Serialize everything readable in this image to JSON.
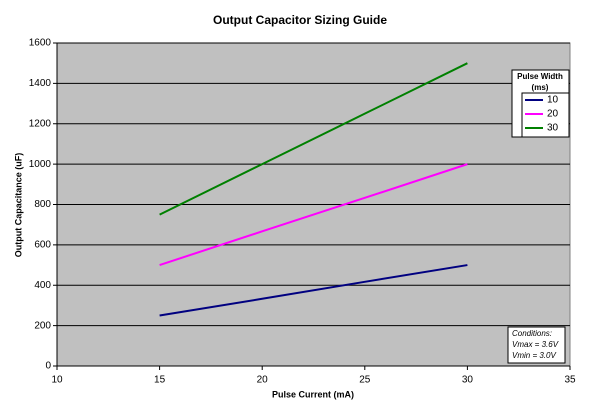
{
  "chart_data": {
    "type": "line",
    "title": "Output Capacitor Sizing Guide",
    "x_label": "Pulse Current (mA)",
    "y_label": "Output Capacitance (uF)",
    "x": [
      15,
      20,
      25,
      30
    ],
    "series": [
      {
        "name": "10",
        "color": "#000080",
        "values": [
          250,
          333,
          417,
          500
        ]
      },
      {
        "name": "20",
        "color": "#ff00ff",
        "values": [
          500,
          667,
          833,
          1000
        ]
      },
      {
        "name": "30",
        "color": "#008000",
        "values": [
          750,
          1000,
          1250,
          1500
        ]
      }
    ],
    "legend_title": [
      "Pulse Width",
      "(ms)"
    ],
    "annotations": [
      "Conditions:",
      "Vmax = 3.6V",
      "Vmin = 3.0V"
    ],
    "xlim": [
      10,
      35
    ],
    "xticks": [
      10,
      15,
      20,
      25,
      30,
      35
    ],
    "ylim": [
      0,
      1600
    ],
    "yticks": [
      0,
      200,
      400,
      600,
      800,
      1000,
      1200,
      1400,
      1600
    ],
    "grid": true,
    "plot_background": "#c0c0c0"
  }
}
